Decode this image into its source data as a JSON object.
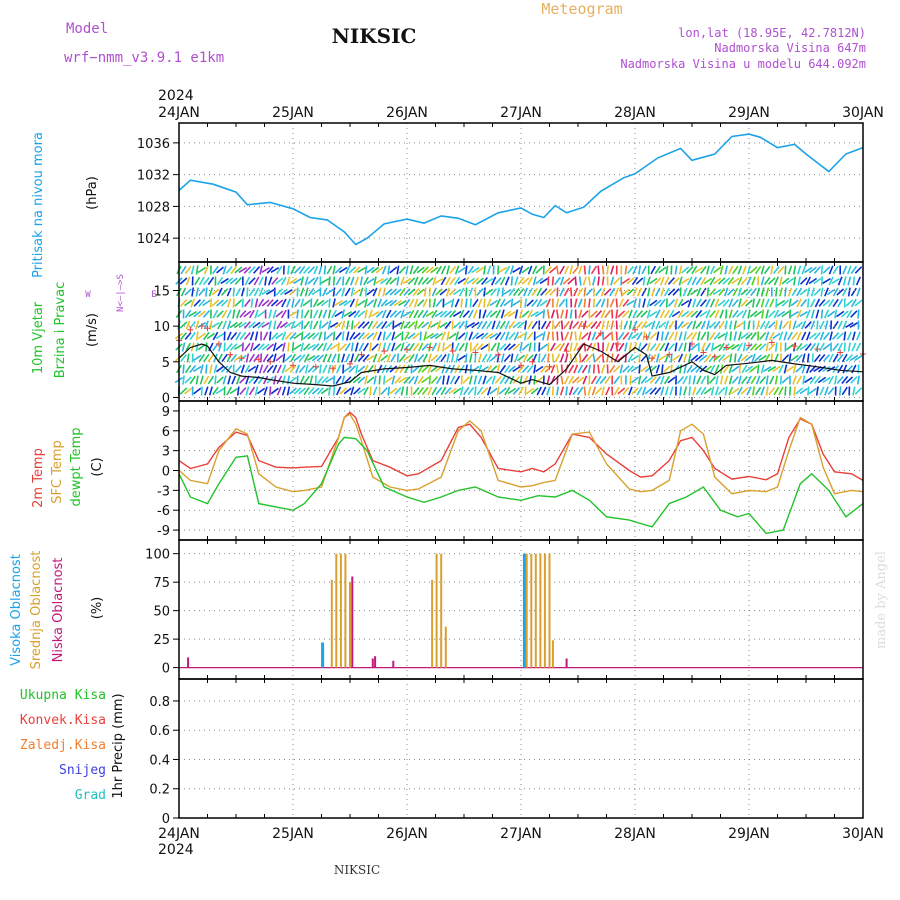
{
  "header": {
    "model_label": "Model",
    "model_name": "wrf−nmm_v3.9.1  e1km",
    "station": "NIKSIC",
    "meteogram": "Meteogram",
    "coords": "lon,lat (18.95E, 42.7812N)",
    "altitude": "Nadmorska Visina 647m",
    "model_altitude": "Nadmorska Visina u modelu 644.092m",
    "year": "2024",
    "footer_station": "NIKSIC",
    "credit": "made by Angel"
  },
  "time_axis": {
    "labels": [
      "24JAN",
      "25JAN",
      "26JAN",
      "27JAN",
      "28JAN",
      "29JAN",
      "30JAN"
    ]
  },
  "colors": {
    "pressure": "#1aa3e8",
    "temp2m": "#e8413a",
    "sfc_temp": "#d9a030",
    "dewpoint": "#22c22a",
    "high_cloud": "#1aa3e8",
    "mid_cloud": "#d9a030",
    "low_cloud": "#c2187a",
    "wind_label": "#22c22a",
    "dir_label": "#b050d0",
    "total_precip": "#22c22a",
    "conv_precip": "#e8413a",
    "frz_precip": "#f08030",
    "snow": "#4040e0",
    "hail": "#22c0c0",
    "header_purple": "#b050d0",
    "header_orange": "#e8b060"
  },
  "panels": {
    "pressure": {
      "ylabel_left": "Pritisak na nivou mora",
      "unit": "(hPa)",
      "ticks": [
        "1024",
        "1028",
        "1032",
        "1036"
      ]
    },
    "wind": {
      "ylabel_left1": "10m Vjetar",
      "ylabel_left2": "Brzina i Pravac",
      "unit": "(m/s)",
      "dir_label": "N<—|—>S",
      "dir_w": "W",
      "dir_e": "E",
      "ticks": [
        "0",
        "5",
        "10",
        "15"
      ]
    },
    "temperature": {
      "ylabel1": "2m Temp",
      "ylabel2": "SFC Temp",
      "ylabel3": "dewpt Temp",
      "unit": "(C)",
      "ticks": [
        "-9",
        "-6",
        "-3",
        "0",
        "3",
        "6",
        "9"
      ]
    },
    "cloud": {
      "ylabel1": "Visoka Oblacnost",
      "ylabel2": "Srednja Oblacnost",
      "ylabel3": "Niska Oblacnost",
      "unit": "(%)",
      "ticks": [
        "0",
        "25",
        "50",
        "75",
        "100"
      ]
    },
    "precip": {
      "legend": [
        "Ukupna Kisa",
        "Konvek.Kisa",
        "Zaledj.Kisa",
        "Snijeg",
        "Grad"
      ],
      "unit": "1hr Precip (mm)",
      "ticks": [
        "0",
        "0.2",
        "0.4",
        "0.6",
        "0.8"
      ]
    }
  },
  "chart_data": [
    {
      "type": "line",
      "title": "",
      "ylabel": "Pritisak na nivou mora (hPa)",
      "x_unit": "days from 24JAN 00UTC",
      "ylim": [
        1021,
        1038.5
      ],
      "series": [
        {
          "x": [
            0,
            0.1,
            0.3,
            0.5,
            0.6,
            0.8,
            1.0,
            1.15,
            1.3,
            1.45,
            1.55,
            1.65,
            1.8,
            2.0,
            2.15,
            2.3,
            2.45,
            2.6,
            2.8,
            3.0,
            3.1,
            3.2,
            3.3,
            3.4,
            3.55,
            3.7,
            3.9,
            4.0,
            4.2,
            4.4,
            4.5,
            4.7,
            4.85,
            5.0,
            5.1,
            5.25,
            5.4,
            5.5,
            5.7,
            5.85,
            6.0
          ],
          "y": [
            1030,
            1031.3,
            1030.8,
            1029.8,
            1028.2,
            1028.5,
            1027.7,
            1026.6,
            1026.3,
            1024.8,
            1023.2,
            1024.0,
            1025.8,
            1026.4,
            1025.9,
            1026.8,
            1026.5,
            1025.7,
            1027.2,
            1027.8,
            1027.0,
            1026.6,
            1028.1,
            1027.2,
            1027.9,
            1029.9,
            1031.6,
            1032.1,
            1034.1,
            1035.3,
            1033.8,
            1034.6,
            1036.8,
            1037.1,
            1036.7,
            1035.4,
            1035.8,
            1034.6,
            1032.4,
            1034.6,
            1035.4
          ]
        }
      ]
    },
    {
      "type": "line",
      "title": "",
      "ylabel": "10m Vjetar Brzina i Pravac (m/s)",
      "x_unit": "days from 24JAN 00UTC",
      "ylim": [
        -0.5,
        19
      ],
      "series": [
        {
          "x": [
            0,
            0.1,
            0.2,
            0.25,
            0.35,
            0.45,
            0.55,
            0.7,
            0.8,
            1.0,
            1.2,
            1.35,
            1.5,
            1.6,
            1.8,
            2.0,
            2.2,
            2.4,
            2.6,
            2.8,
            3.0,
            3.1,
            3.25,
            3.4,
            3.55,
            3.7,
            3.85,
            4.0,
            4.1,
            4.15,
            4.3,
            4.5,
            4.6,
            4.7,
            4.8,
            5.0,
            5.2,
            5.4,
            5.6,
            5.8,
            6.0
          ],
          "y": [
            5.5,
            7.0,
            7.5,
            7.2,
            5.0,
            3.5,
            3.0,
            2.8,
            2.5,
            2.0,
            1.8,
            1.6,
            2.2,
            3.5,
            4.0,
            4.2,
            4.5,
            4.0,
            3.8,
            3.5,
            2.0,
            2.5,
            1.8,
            4.0,
            7.5,
            6.5,
            5.0,
            7.0,
            6.0,
            3.0,
            3.5,
            5.0,
            3.8,
            3.2,
            4.5,
            4.8,
            5.2,
            4.7,
            4.3,
            3.8,
            3.6
          ]
        }
      ]
    },
    {
      "type": "line",
      "title": "",
      "ylabel": "Temperature (C)",
      "x_unit": "days from 24JAN 00UTC",
      "ylim": [
        -10.5,
        10.5
      ],
      "series": [
        {
          "name": "2m Temp",
          "x": [
            0,
            0.1,
            0.25,
            0.35,
            0.5,
            0.6,
            0.7,
            0.85,
            1.0,
            1.1,
            1.25,
            1.4,
            1.45,
            1.5,
            1.55,
            1.6,
            1.7,
            1.85,
            2.0,
            2.1,
            2.3,
            2.45,
            2.55,
            2.65,
            2.8,
            3.0,
            3.1,
            3.2,
            3.3,
            3.45,
            3.6,
            3.75,
            3.95,
            4.05,
            4.15,
            4.3,
            4.4,
            4.5,
            4.6,
            4.7,
            4.85,
            5.0,
            5.15,
            5.25,
            5.35,
            5.45,
            5.55,
            5.65,
            5.75,
            5.9,
            6.0
          ],
          "y": [
            1.5,
            0.3,
            1.0,
            3.5,
            5.8,
            5.3,
            1.5,
            0.5,
            0.4,
            0.5,
            0.6,
            5.0,
            8.0,
            8.8,
            8.0,
            5.5,
            1.5,
            0.5,
            -0.8,
            -0.5,
            1.5,
            6.5,
            7.0,
            5.0,
            0.3,
            -0.2,
            0.3,
            -0.2,
            1.0,
            5.5,
            5.0,
            2.5,
            0.0,
            -1.0,
            -0.8,
            1.5,
            4.5,
            5.0,
            3.0,
            0.3,
            -1.3,
            -0.9,
            -1.4,
            -0.5,
            5.0,
            7.8,
            7.0,
            2.5,
            -0.2,
            -0.5,
            -1.5
          ]
        },
        {
          "name": "SFC Temp",
          "x": [
            0,
            0.1,
            0.25,
            0.35,
            0.5,
            0.6,
            0.7,
            0.85,
            1.0,
            1.1,
            1.25,
            1.4,
            1.45,
            1.5,
            1.55,
            1.6,
            1.7,
            1.85,
            2.0,
            2.1,
            2.3,
            2.45,
            2.55,
            2.65,
            2.8,
            3.0,
            3.1,
            3.2,
            3.3,
            3.45,
            3.6,
            3.75,
            3.95,
            4.05,
            4.15,
            4.3,
            4.4,
            4.5,
            4.6,
            4.7,
            4.85,
            5.0,
            5.15,
            5.25,
            5.35,
            5.45,
            5.55,
            5.65,
            5.75,
            5.9,
            6.0
          ],
          "y": [
            0.0,
            -1.5,
            -2.0,
            3.0,
            6.3,
            5.5,
            -0.5,
            -2.5,
            -3.2,
            -3.0,
            -2.5,
            5.0,
            8.0,
            8.5,
            7.0,
            4.5,
            -1.0,
            -2.5,
            -3.0,
            -2.8,
            -1.0,
            6.0,
            7.5,
            6.0,
            -1.5,
            -2.5,
            -2.3,
            -1.8,
            -1.5,
            5.5,
            5.8,
            1.0,
            -2.8,
            -3.2,
            -3.0,
            -1.5,
            6.0,
            7.0,
            5.5,
            -1.0,
            -3.5,
            -3.0,
            -3.2,
            -2.5,
            3.0,
            8.0,
            7.0,
            0.5,
            -3.5,
            -3.0,
            -3.2
          ]
        },
        {
          "name": "dewpt Temp",
          "x": [
            0,
            0.1,
            0.25,
            0.35,
            0.5,
            0.6,
            0.7,
            0.85,
            1.0,
            1.1,
            1.25,
            1.4,
            1.45,
            1.55,
            1.65,
            1.8,
            2.0,
            2.15,
            2.3,
            2.45,
            2.6,
            2.8,
            3.0,
            3.15,
            3.3,
            3.45,
            3.6,
            3.75,
            3.95,
            4.05,
            4.15,
            4.3,
            4.45,
            4.6,
            4.75,
            4.9,
            5.0,
            5.15,
            5.3,
            5.45,
            5.55,
            5.7,
            5.85,
            6.0
          ],
          "y": [
            -0.5,
            -4.0,
            -5.0,
            -2.0,
            2.0,
            2.2,
            -5.0,
            -5.5,
            -6.0,
            -5.0,
            -2.0,
            4.0,
            5.0,
            4.8,
            3.0,
            -2.5,
            -4.0,
            -4.8,
            -4.0,
            -3.0,
            -2.5,
            -4.0,
            -4.5,
            -3.8,
            -4.0,
            -3.0,
            -4.5,
            -7.0,
            -7.5,
            -8.0,
            -8.5,
            -5.0,
            -4.0,
            -2.5,
            -6.0,
            -7.0,
            -6.5,
            -9.5,
            -9.0,
            -2.0,
            -0.5,
            -3.0,
            -7.0,
            -5.0
          ]
        }
      ]
    },
    {
      "type": "bar",
      "title": "",
      "ylabel": "Oblacnost (%)",
      "x_unit": "days from 24JAN 00UTC",
      "ylim": [
        0,
        100
      ],
      "series": [
        {
          "name": "Visoka Oblacnost",
          "x": [
            1.26,
            3.03
          ],
          "values": [
            22,
            100
          ]
        },
        {
          "name": "Srednja Oblacnost",
          "x": [
            1.34,
            1.38,
            1.42,
            1.46,
            1.5,
            2.22,
            2.26,
            2.3,
            2.34,
            3.05,
            3.09,
            3.13,
            3.17,
            3.21,
            3.25,
            3.28
          ],
          "values": [
            77,
            100,
            100,
            100,
            75,
            77,
            100,
            100,
            36,
            100,
            100,
            100,
            100,
            100,
            100,
            24
          ]
        },
        {
          "name": "Niska Oblacnost",
          "x": [
            0.08,
            1.52,
            1.7,
            1.72,
            1.88,
            3.4
          ],
          "values": [
            9,
            80,
            8,
            10,
            6,
            8
          ]
        }
      ]
    },
    {
      "type": "bar",
      "title": "",
      "ylabel": "1hr Precip (mm)",
      "x_unit": "days from 24JAN 00UTC",
      "ylim": [
        0,
        0.95
      ],
      "series": []
    }
  ]
}
